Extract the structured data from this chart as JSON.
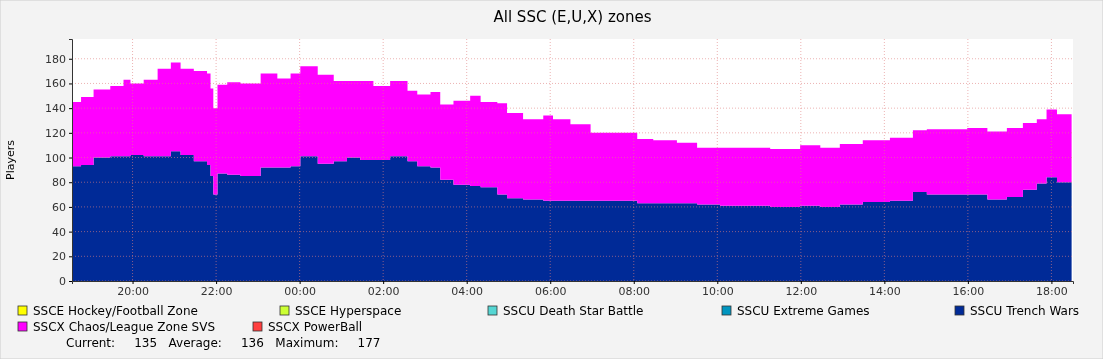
{
  "chart_data": {
    "type": "area",
    "title": "All SSC (E,U,X) zones",
    "ylabel": "Players",
    "stacked": true,
    "grid": true,
    "legend": "bottom",
    "x": [
      "2000-01-01T18:34",
      "2000-01-01T18:46",
      "2000-01-01T19:04",
      "2000-01-01T19:28",
      "2000-01-01T19:47",
      "2000-01-01T19:57",
      "2000-01-01T20:16",
      "2000-01-01T20:36",
      "2000-01-01T20:55",
      "2000-01-01T21:09",
      "2000-01-01T21:28",
      "2000-01-01T21:47",
      "2000-01-01T21:52",
      "2000-01-01T21:56",
      "2000-01-01T22:02",
      "2000-01-01T22:16",
      "2000-01-01T22:35",
      "2000-01-01T23:04",
      "2000-01-01T23:28",
      "2000-01-01T23:47",
      "2000-01-02T00:01",
      "2000-01-02T00:26",
      "2000-01-02T00:49",
      "2000-01-02T01:08",
      "2000-01-02T01:27",
      "2000-01-02T01:46",
      "2000-01-02T02:10",
      "2000-01-02T02:35",
      "2000-01-02T02:49",
      "2000-01-02T03:08",
      "2000-01-02T03:22",
      "2000-01-02T03:41",
      "2000-01-02T04:05",
      "2000-01-02T04:20",
      "2000-01-02T04:44",
      "2000-01-02T04:58",
      "2000-01-02T05:21",
      "2000-01-02T05:50",
      "2000-01-02T06:04",
      "2000-01-02T06:29",
      "2000-01-02T06:58",
      "2000-01-02T07:40",
      "2000-01-02T08:05",
      "2000-01-02T08:28",
      "2000-01-02T09:02",
      "2000-01-02T09:31",
      "2000-01-02T10:04",
      "2000-01-02T11:16",
      "2000-01-02T11:59",
      "2000-01-02T12:28",
      "2000-01-02T12:56",
      "2000-01-02T13:29",
      "2000-01-02T14:08",
      "2000-01-02T14:41",
      "2000-01-02T15:01",
      "2000-01-02T15:59",
      "2000-01-02T16:28",
      "2000-01-02T16:56",
      "2000-01-02T17:19",
      "2000-01-02T17:39",
      "2000-01-02T17:53",
      "2000-01-02T18:08",
      "2000-01-02T18:29"
    ],
    "xlim": [
      "2000-01-01T18:33",
      "2000-01-02T18:31"
    ],
    "xticks": [
      {
        "value": "2000-01-01T20:00",
        "label": "20:00"
      },
      {
        "value": "2000-01-01T22:00",
        "label": "22:00"
      },
      {
        "value": "2000-01-02T00:00",
        "label": "00:00"
      },
      {
        "value": "2000-01-02T02:00",
        "label": "02:00"
      },
      {
        "value": "2000-01-02T04:00",
        "label": "04:00"
      },
      {
        "value": "2000-01-02T06:00",
        "label": "06:00"
      },
      {
        "value": "2000-01-02T08:00",
        "label": "08:00"
      },
      {
        "value": "2000-01-02T10:00",
        "label": "10:00"
      },
      {
        "value": "2000-01-02T12:00",
        "label": "12:00"
      },
      {
        "value": "2000-01-02T14:00",
        "label": "14:00"
      },
      {
        "value": "2000-01-02T16:00",
        "label": "16:00"
      },
      {
        "value": "2000-01-02T18:00",
        "label": "18:00"
      }
    ],
    "ylim": [
      0,
      196
    ],
    "yticks": [
      0,
      20,
      40,
      60,
      80,
      100,
      120,
      140,
      160,
      180
    ],
    "series": [
      {
        "name": "SSCE Hockey/Football Zone",
        "color": "#ffff00",
        "values": [
          null,
          null,
          null,
          null,
          null,
          null,
          null,
          null,
          null,
          null,
          null,
          null,
          null,
          null,
          null,
          null,
          null,
          null,
          null,
          null,
          null,
          null,
          null,
          null,
          null,
          null,
          null,
          null,
          null,
          null,
          null,
          null,
          null,
          null,
          null,
          null,
          null,
          null,
          null,
          null,
          null,
          null,
          null,
          null,
          null,
          null,
          null,
          null,
          null,
          null,
          null,
          null,
          null,
          null,
          null,
          null,
          null,
          null,
          null,
          null,
          null,
          null,
          null
        ]
      },
      {
        "name": "SSCE Hyperspace",
        "color": "#ccff33",
        "values": [
          null,
          null,
          null,
          null,
          null,
          null,
          null,
          null,
          null,
          null,
          null,
          null,
          null,
          null,
          null,
          null,
          null,
          null,
          null,
          null,
          null,
          null,
          null,
          null,
          null,
          null,
          null,
          null,
          null,
          null,
          null,
          null,
          null,
          null,
          null,
          null,
          null,
          null,
          null,
          null,
          null,
          null,
          null,
          null,
          null,
          null,
          null,
          null,
          null,
          null,
          null,
          null,
          null,
          null,
          null,
          null,
          null,
          null,
          null,
          null,
          null,
          null,
          null
        ]
      },
      {
        "name": "SSCU Death Star Battle",
        "color": "#55d6d3",
        "values": [
          null,
          null,
          null,
          null,
          null,
          null,
          null,
          null,
          null,
          null,
          null,
          null,
          null,
          null,
          null,
          null,
          null,
          null,
          null,
          null,
          null,
          null,
          null,
          null,
          null,
          null,
          null,
          null,
          null,
          null,
          null,
          null,
          null,
          null,
          null,
          null,
          null,
          null,
          null,
          null,
          null,
          null,
          null,
          null,
          null,
          null,
          null,
          null,
          null,
          null,
          null,
          null,
          null,
          null,
          null,
          null,
          null,
          null,
          null,
          null,
          null,
          null,
          null
        ]
      },
      {
        "name": "SSCU Extreme Games",
        "color": "#0095bf",
        "values": [
          null,
          null,
          null,
          null,
          null,
          null,
          null,
          null,
          null,
          null,
          null,
          null,
          null,
          null,
          null,
          null,
          null,
          null,
          null,
          null,
          null,
          null,
          null,
          null,
          null,
          null,
          null,
          null,
          null,
          null,
          null,
          null,
          null,
          null,
          null,
          null,
          null,
          null,
          null,
          null,
          null,
          null,
          null,
          null,
          null,
          null,
          null,
          null,
          null,
          null,
          null,
          null,
          null,
          null,
          null,
          null,
          null,
          null,
          null,
          null,
          null,
          null,
          null
        ]
      },
      {
        "name": "SSCU Trench Wars",
        "color": "#002a97",
        "values": [
          93,
          94,
          100,
          101,
          101,
          102,
          101,
          101,
          105,
          102,
          97,
          94,
          85,
          70,
          87,
          86,
          85,
          92,
          92,
          93,
          101,
          95,
          97,
          100,
          98,
          98,
          101,
          97,
          93,
          92,
          82,
          78,
          77,
          76,
          70,
          67,
          66,
          65,
          65,
          65,
          65,
          65,
          63,
          63,
          63,
          62,
          61,
          60,
          61,
          60,
          62,
          64,
          65,
          72,
          70,
          70,
          66,
          68,
          74,
          79,
          84,
          80,
          82
        ]
      },
      {
        "name": "SSCX Chaos/League Zone SVS",
        "color": "#ff00ff",
        "values": [
          52,
          55,
          55,
          57,
          62,
          58,
          62,
          71,
          72,
          70,
          73,
          74,
          71,
          70,
          72,
          75,
          75,
          76,
          72,
          75,
          73,
          72,
          65,
          62,
          64,
          60,
          61,
          57,
          58,
          61,
          61,
          68,
          73,
          69,
          74,
          69,
          65,
          69,
          66,
          62,
          55,
          55,
          52,
          51,
          49,
          46,
          47,
          47,
          49,
          48,
          49,
          50,
          51,
          50,
          53,
          54,
          55,
          56,
          54,
          52,
          55,
          55,
          53
        ]
      },
      {
        "name": "SSCX PowerBall",
        "color": "#ff3f3f",
        "values": [
          null,
          null,
          null,
          null,
          null,
          null,
          null,
          null,
          null,
          null,
          null,
          null,
          null,
          null,
          null,
          null,
          null,
          null,
          null,
          null,
          null,
          null,
          null,
          null,
          null,
          null,
          null,
          null,
          null,
          null,
          null,
          null,
          null,
          null,
          null,
          null,
          null,
          null,
          null,
          null,
          null,
          null,
          null,
          null,
          null,
          null,
          null,
          null,
          null,
          null,
          null,
          null,
          null,
          null,
          null,
          null,
          null,
          null,
          null,
          null,
          null,
          null,
          null
        ]
      }
    ],
    "annotations": [
      "Current:     135   Average:     136   Maximum:     177"
    ]
  }
}
